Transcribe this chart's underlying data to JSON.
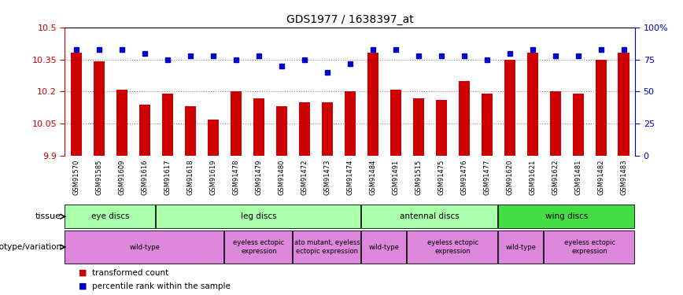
{
  "title": "GDS1977 / 1638397_at",
  "samples": [
    "GSM91570",
    "GSM91585",
    "GSM91609",
    "GSM91616",
    "GSM91617",
    "GSM91618",
    "GSM91619",
    "GSM91478",
    "GSM91479",
    "GSM91480",
    "GSM91472",
    "GSM91473",
    "GSM91474",
    "GSM91484",
    "GSM91491",
    "GSM91515",
    "GSM91475",
    "GSM91476",
    "GSM91477",
    "GSM91620",
    "GSM91621",
    "GSM91622",
    "GSM91481",
    "GSM91482",
    "GSM91483"
  ],
  "bar_values": [
    10.38,
    10.34,
    10.21,
    10.14,
    10.19,
    10.13,
    10.07,
    10.2,
    10.17,
    10.13,
    10.15,
    10.15,
    10.2,
    10.38,
    10.21,
    10.17,
    10.16,
    10.25,
    10.19,
    10.35,
    10.38,
    10.2,
    10.19,
    10.35,
    10.38
  ],
  "percentile_values": [
    83,
    83,
    83,
    80,
    75,
    78,
    78,
    75,
    78,
    70,
    75,
    65,
    72,
    83,
    83,
    78,
    78,
    78,
    75,
    80,
    83,
    78,
    78,
    83,
    83
  ],
  "ymin": 9.9,
  "ymax": 10.5,
  "yticks": [
    9.9,
    10.05,
    10.2,
    10.35,
    10.5
  ],
  "ytick_labels": [
    "9.9",
    "10.05",
    "10.2",
    "10.35",
    "10.5"
  ],
  "right_yticks": [
    0,
    25,
    50,
    75,
    100
  ],
  "right_ytick_labels": [
    "0",
    "25",
    "50",
    "75",
    "100%"
  ],
  "bar_color": "#cc0000",
  "percentile_color": "#0000cc",
  "tissue_row": [
    {
      "label": "eye discs",
      "start": 0,
      "end": 4
    },
    {
      "label": "leg discs",
      "start": 4,
      "end": 13
    },
    {
      "label": "antennal discs",
      "start": 13,
      "end": 19
    },
    {
      "label": "wing discs",
      "start": 19,
      "end": 25
    }
  ],
  "tissue_colors": {
    "eye discs": "#aaffaa",
    "leg discs": "#aaffaa",
    "antennal discs": "#aaffaa",
    "wing discs": "#44dd44"
  },
  "genotype_row": [
    {
      "label": "wild-type",
      "start": 0,
      "end": 7
    },
    {
      "label": "eyeless ectopic\nexpression",
      "start": 7,
      "end": 10
    },
    {
      "label": "ato mutant, eyeless\nectopic expression",
      "start": 10,
      "end": 13
    },
    {
      "label": "wild-type",
      "start": 13,
      "end": 15
    },
    {
      "label": "eyeless ectopic\nexpression",
      "start": 15,
      "end": 19
    },
    {
      "label": "wild-type",
      "start": 19,
      "end": 21
    },
    {
      "label": "eyeless ectopic\nexpression",
      "start": 21,
      "end": 25
    }
  ],
  "genotype_color": "#dd88dd",
  "left_axis_color": "#cc0000",
  "right_axis_color": "#0000cc",
  "grid_color": "#888888",
  "bg_color": "#ffffff",
  "xtick_bg": "#cccccc"
}
